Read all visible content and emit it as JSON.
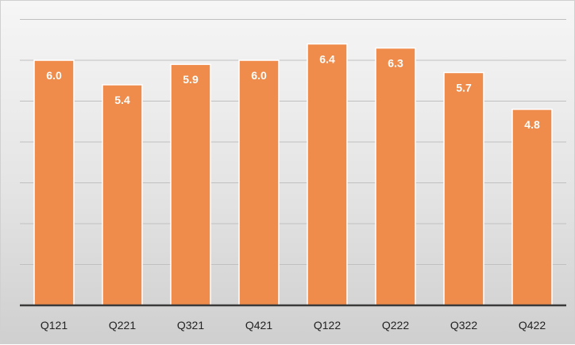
{
  "chart_data": {
    "type": "bar",
    "title": "",
    "xlabel": "",
    "ylabel": "",
    "categories": [
      "Q121",
      "Q221",
      "Q321",
      "Q421",
      "Q122",
      "Q222",
      "Q322",
      "Q422"
    ],
    "values": [
      6.0,
      5.4,
      5.9,
      6.0,
      6.4,
      6.3,
      5.7,
      4.8
    ],
    "data_labels": [
      "6.0",
      "5.4",
      "5.9",
      "6.0",
      "6.4",
      "6.3",
      "5.7",
      "4.8"
    ],
    "ylim": [
      0,
      7.0
    ],
    "ytick_step": 1.0,
    "grid": true,
    "legend": "none",
    "colors": {
      "bar": "#ef8c4c",
      "bar_edge": "#ffffff",
      "grid": "#c0c0c0",
      "axis": "#3a3a3a",
      "label": "#ffffff"
    }
  }
}
